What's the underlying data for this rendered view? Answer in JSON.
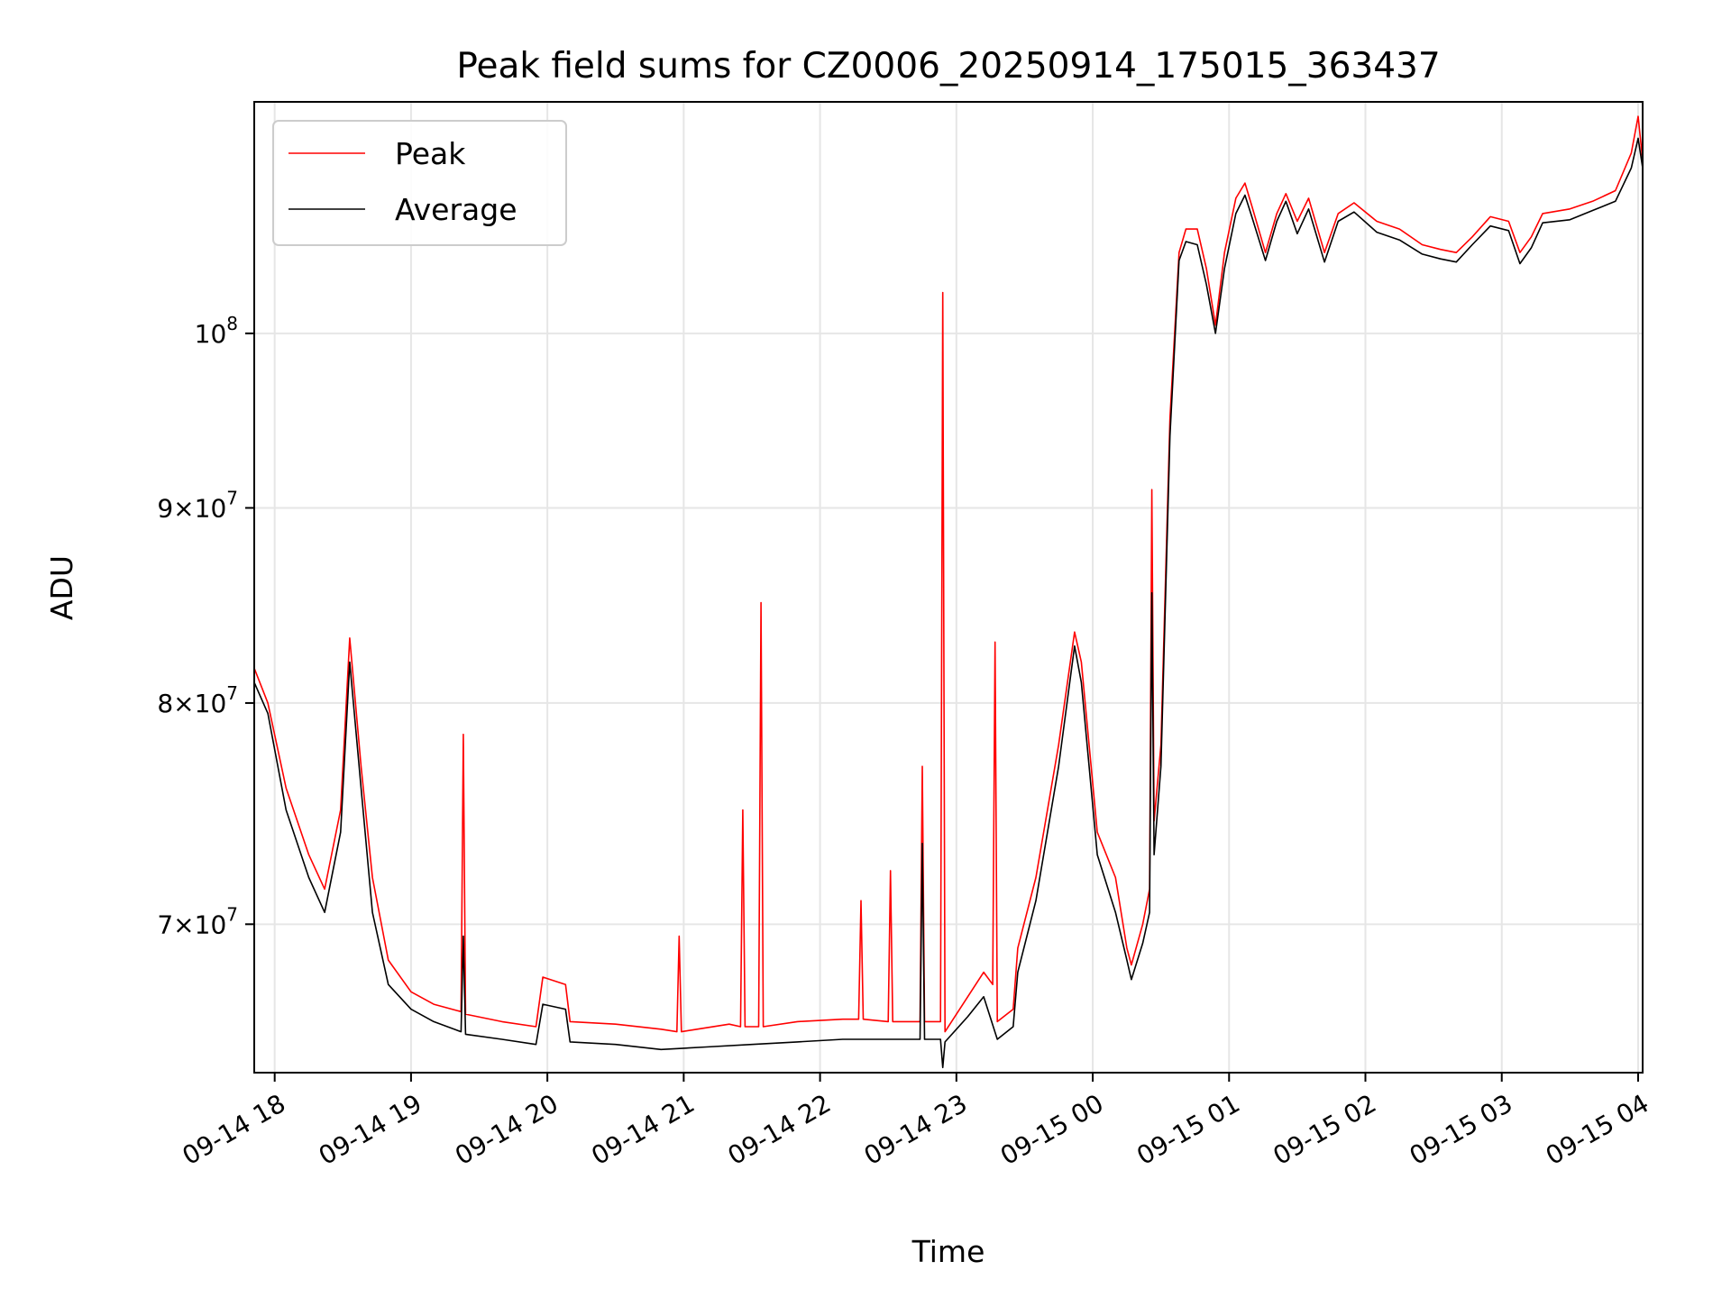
{
  "chart_data": {
    "type": "line",
    "title": "Peak field sums for CZ0006_20250914_175015_363437",
    "xlabel": "Time",
    "ylabel": "ADU",
    "y_scale": "log",
    "ylim": [
      64000000,
      115000000
    ],
    "xlim": [
      "2025-09-14 17:51",
      "2025-09-15 04:02"
    ],
    "grid": true,
    "legend": "upper-left",
    "x_ticks": [
      {
        "t": "2025-09-14 18:00",
        "label": "09-14 18"
      },
      {
        "t": "2025-09-14 19:00",
        "label": "09-14 19"
      },
      {
        "t": "2025-09-14 20:00",
        "label": "09-14 20"
      },
      {
        "t": "2025-09-14 21:00",
        "label": "09-14 21"
      },
      {
        "t": "2025-09-14 22:00",
        "label": "09-14 22"
      },
      {
        "t": "2025-09-14 23:00",
        "label": "09-14 23"
      },
      {
        "t": "2025-09-15 00:00",
        "label": "09-15 00"
      },
      {
        "t": "2025-09-15 01:00",
        "label": "09-15 01"
      },
      {
        "t": "2025-09-15 02:00",
        "label": "09-15 02"
      },
      {
        "t": "2025-09-15 03:00",
        "label": "09-15 03"
      },
      {
        "t": "2025-09-15 04:00",
        "label": "09-15 04"
      }
    ],
    "y_ticks": [
      {
        "v": 70000000,
        "mant": "7",
        "exp": "7"
      },
      {
        "v": 80000000,
        "mant": "8",
        "exp": "7"
      },
      {
        "v": 90000000,
        "mant": "9",
        "exp": "7"
      },
      {
        "v": 100000000,
        "mant": "",
        "exp": "8"
      }
    ],
    "series": [
      {
        "name": "Peak",
        "color": "#ff0000",
        "points": [
          [
            "2025-09-14 17:51",
            81700000
          ],
          [
            "2025-09-14 17:57",
            80000000
          ],
          [
            "2025-09-14 18:05",
            76000000
          ],
          [
            "2025-09-14 18:15",
            73000000
          ],
          [
            "2025-09-14 18:22",
            71500000
          ],
          [
            "2025-09-14 18:29",
            75000000
          ],
          [
            "2025-09-14 18:33",
            83200000
          ],
          [
            "2025-09-14 18:38",
            77000000
          ],
          [
            "2025-09-14 18:43",
            72000000
          ],
          [
            "2025-09-14 18:50",
            68500000
          ],
          [
            "2025-09-14 19:00",
            67200000
          ],
          [
            "2025-09-14 19:10",
            66700000
          ],
          [
            "2025-09-14 19:22",
            66400000
          ],
          [
            "2025-09-14 19:23",
            78500000
          ],
          [
            "2025-09-14 19:24",
            66300000
          ],
          [
            "2025-09-14 19:40",
            66000000
          ],
          [
            "2025-09-14 19:55",
            65800000
          ],
          [
            "2025-09-14 19:58",
            67800000
          ],
          [
            "2025-09-14 20:08",
            67500000
          ],
          [
            "2025-09-14 20:10",
            66000000
          ],
          [
            "2025-09-14 20:30",
            65900000
          ],
          [
            "2025-09-14 20:50",
            65700000
          ],
          [
            "2025-09-14 20:57",
            65600000
          ],
          [
            "2025-09-14 20:58",
            69500000
          ],
          [
            "2025-09-14 20:59",
            65600000
          ],
          [
            "2025-09-14 21:20",
            65900000
          ],
          [
            "2025-09-14 21:25",
            65800000
          ],
          [
            "2025-09-14 21:26",
            75000000
          ],
          [
            "2025-09-14 21:27",
            65800000
          ],
          [
            "2025-09-14 21:33",
            65800000
          ],
          [
            "2025-09-14 21:34",
            85000000
          ],
          [
            "2025-09-14 21:35",
            65800000
          ],
          [
            "2025-09-14 21:50",
            66000000
          ],
          [
            "2025-09-14 22:10",
            66100000
          ],
          [
            "2025-09-14 22:17",
            66100000
          ],
          [
            "2025-09-14 22:18",
            71000000
          ],
          [
            "2025-09-14 22:19",
            66100000
          ],
          [
            "2025-09-14 22:30",
            66000000
          ],
          [
            "2025-09-14 22:31",
            72300000
          ],
          [
            "2025-09-14 22:32",
            66000000
          ],
          [
            "2025-09-14 22:44",
            66000000
          ],
          [
            "2025-09-14 22:45",
            77000000
          ],
          [
            "2025-09-14 22:46",
            66000000
          ],
          [
            "2025-09-14 22:53",
            66000000
          ],
          [
            "2025-09-14 22:54",
            102500000
          ],
          [
            "2025-09-14 22:55",
            65600000
          ],
          [
            "2025-09-14 23:05",
            67000000
          ],
          [
            "2025-09-14 23:12",
            68000000
          ],
          [
            "2025-09-14 23:16",
            67500000
          ],
          [
            "2025-09-14 23:17",
            83000000
          ],
          [
            "2025-09-14 23:18",
            66000000
          ],
          [
            "2025-09-14 23:25",
            66500000
          ],
          [
            "2025-09-14 23:27",
            69000000
          ],
          [
            "2025-09-14 23:35",
            72000000
          ],
          [
            "2025-09-14 23:45",
            78000000
          ],
          [
            "2025-09-14 23:52",
            83500000
          ],
          [
            "2025-09-14 23:55",
            82000000
          ],
          [
            "2025-09-15 00:02",
            74000000
          ],
          [
            "2025-09-15 00:10",
            72000000
          ],
          [
            "2025-09-15 00:15",
            69000000
          ],
          [
            "2025-09-15 00:17",
            68300000
          ],
          [
            "2025-09-15 00:22",
            70000000
          ],
          [
            "2025-09-15 00:25",
            71500000
          ],
          [
            "2025-09-15 00:26",
            91000000
          ],
          [
            "2025-09-15 00:27",
            74500000
          ],
          [
            "2025-09-15 00:30",
            78000000
          ],
          [
            "2025-09-15 00:34",
            95000000
          ],
          [
            "2025-09-15 00:38",
            105000000
          ],
          [
            "2025-09-15 00:41",
            106500000
          ],
          [
            "2025-09-15 00:46",
            106500000
          ],
          [
            "2025-09-15 00:50",
            104000000
          ],
          [
            "2025-09-15 00:54",
            100500000
          ],
          [
            "2025-09-15 00:58",
            105000000
          ],
          [
            "2025-09-15 01:03",
            108500000
          ],
          [
            "2025-09-15 01:07",
            109500000
          ],
          [
            "2025-09-15 01:10",
            108000000
          ],
          [
            "2025-09-15 01:16",
            105000000
          ],
          [
            "2025-09-15 01:21",
            107500000
          ],
          [
            "2025-09-15 01:25",
            108800000
          ],
          [
            "2025-09-15 01:30",
            107000000
          ],
          [
            "2025-09-15 01:35",
            108500000
          ],
          [
            "2025-09-15 01:42",
            105000000
          ],
          [
            "2025-09-15 01:48",
            107500000
          ],
          [
            "2025-09-15 01:55",
            108200000
          ],
          [
            "2025-09-15 02:05",
            107000000
          ],
          [
            "2025-09-15 02:15",
            106500000
          ],
          [
            "2025-09-15 02:25",
            105500000
          ],
          [
            "2025-09-15 02:33",
            105200000
          ],
          [
            "2025-09-15 02:40",
            105000000
          ],
          [
            "2025-09-15 02:47",
            106000000
          ],
          [
            "2025-09-15 02:55",
            107300000
          ],
          [
            "2025-09-15 03:03",
            107000000
          ],
          [
            "2025-09-15 03:08",
            105000000
          ],
          [
            "2025-09-15 03:13",
            106000000
          ],
          [
            "2025-09-15 03:18",
            107500000
          ],
          [
            "2025-09-15 03:30",
            107800000
          ],
          [
            "2025-09-15 03:40",
            108300000
          ],
          [
            "2025-09-15 03:50",
            109000000
          ],
          [
            "2025-09-15 03:57",
            111500000
          ],
          [
            "2025-09-15 04:00",
            114000000
          ],
          [
            "2025-09-15 04:02",
            111000000
          ]
        ]
      },
      {
        "name": "Average",
        "color": "#000000",
        "points": [
          [
            "2025-09-14 17:51",
            81000000
          ],
          [
            "2025-09-14 17:57",
            79500000
          ],
          [
            "2025-09-14 18:05",
            75000000
          ],
          [
            "2025-09-14 18:15",
            72000000
          ],
          [
            "2025-09-14 18:22",
            70500000
          ],
          [
            "2025-09-14 18:29",
            74000000
          ],
          [
            "2025-09-14 18:33",
            82000000
          ],
          [
            "2025-09-14 18:38",
            76000000
          ],
          [
            "2025-09-14 18:43",
            70500000
          ],
          [
            "2025-09-14 18:50",
            67500000
          ],
          [
            "2025-09-14 19:00",
            66500000
          ],
          [
            "2025-09-14 19:10",
            66000000
          ],
          [
            "2025-09-14 19:22",
            65600000
          ],
          [
            "2025-09-14 19:23",
            69500000
          ],
          [
            "2025-09-14 19:24",
            65500000
          ],
          [
            "2025-09-14 19:40",
            65300000
          ],
          [
            "2025-09-14 19:55",
            65100000
          ],
          [
            "2025-09-14 19:58",
            66700000
          ],
          [
            "2025-09-14 20:08",
            66500000
          ],
          [
            "2025-09-14 20:10",
            65200000
          ],
          [
            "2025-09-14 20:30",
            65100000
          ],
          [
            "2025-09-14 20:50",
            64900000
          ],
          [
            "2025-09-14 21:10",
            65000000
          ],
          [
            "2025-09-14 21:30",
            65100000
          ],
          [
            "2025-09-14 21:50",
            65200000
          ],
          [
            "2025-09-14 22:10",
            65300000
          ],
          [
            "2025-09-14 22:30",
            65300000
          ],
          [
            "2025-09-14 22:44",
            65300000
          ],
          [
            "2025-09-14 22:45",
            73500000
          ],
          [
            "2025-09-14 22:46",
            65300000
          ],
          [
            "2025-09-14 22:53",
            65300000
          ],
          [
            "2025-09-14 22:54",
            64200000
          ],
          [
            "2025-09-14 22:55",
            65200000
          ],
          [
            "2025-09-14 23:05",
            66200000
          ],
          [
            "2025-09-14 23:12",
            67000000
          ],
          [
            "2025-09-14 23:18",
            65300000
          ],
          [
            "2025-09-14 23:25",
            65800000
          ],
          [
            "2025-09-14 23:27",
            68000000
          ],
          [
            "2025-09-14 23:35",
            71000000
          ],
          [
            "2025-09-14 23:45",
            77000000
          ],
          [
            "2025-09-14 23:52",
            82800000
          ],
          [
            "2025-09-14 23:55",
            81000000
          ],
          [
            "2025-09-15 00:02",
            73000000
          ],
          [
            "2025-09-15 00:10",
            70500000
          ],
          [
            "2025-09-15 00:15",
            68500000
          ],
          [
            "2025-09-15 00:17",
            67700000
          ],
          [
            "2025-09-15 00:22",
            69200000
          ],
          [
            "2025-09-15 00:25",
            70500000
          ],
          [
            "2025-09-15 00:26",
            85500000
          ],
          [
            "2025-09-15 00:27",
            73000000
          ],
          [
            "2025-09-15 00:30",
            77000000
          ],
          [
            "2025-09-15 00:34",
            94000000
          ],
          [
            "2025-09-15 00:38",
            104500000
          ],
          [
            "2025-09-15 00:41",
            105700000
          ],
          [
            "2025-09-15 00:46",
            105500000
          ],
          [
            "2025-09-15 00:50",
            103000000
          ],
          [
            "2025-09-15 00:54",
            100000000
          ],
          [
            "2025-09-15 00:58",
            104000000
          ],
          [
            "2025-09-15 01:03",
            107500000
          ],
          [
            "2025-09-15 01:07",
            108700000
          ],
          [
            "2025-09-15 01:10",
            107300000
          ],
          [
            "2025-09-15 01:16",
            104500000
          ],
          [
            "2025-09-15 01:21",
            107000000
          ],
          [
            "2025-09-15 01:25",
            108300000
          ],
          [
            "2025-09-15 01:30",
            106200000
          ],
          [
            "2025-09-15 01:35",
            107800000
          ],
          [
            "2025-09-15 01:42",
            104400000
          ],
          [
            "2025-09-15 01:48",
            107000000
          ],
          [
            "2025-09-15 01:55",
            107600000
          ],
          [
            "2025-09-15 02:05",
            106300000
          ],
          [
            "2025-09-15 02:15",
            105800000
          ],
          [
            "2025-09-15 02:25",
            104900000
          ],
          [
            "2025-09-15 02:33",
            104600000
          ],
          [
            "2025-09-15 02:40",
            104400000
          ],
          [
            "2025-09-15 02:47",
            105500000
          ],
          [
            "2025-09-15 02:55",
            106700000
          ],
          [
            "2025-09-15 03:03",
            106400000
          ],
          [
            "2025-09-15 03:08",
            104300000
          ],
          [
            "2025-09-15 03:13",
            105300000
          ],
          [
            "2025-09-15 03:18",
            106900000
          ],
          [
            "2025-09-15 03:30",
            107100000
          ],
          [
            "2025-09-15 03:40",
            107700000
          ],
          [
            "2025-09-15 03:50",
            108300000
          ],
          [
            "2025-09-15 03:57",
            110500000
          ],
          [
            "2025-09-15 04:00",
            112500000
          ],
          [
            "2025-09-15 04:02",
            110500000
          ]
        ]
      }
    ]
  }
}
